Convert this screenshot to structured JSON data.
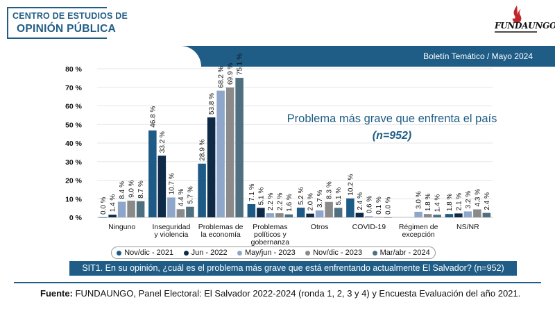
{
  "header": {
    "org_line1": "CENTRO DE ESTUDIOS DE",
    "org_line2": "OPINIÓN PÚBLICA",
    "logo_text": "FUNDAUNGO",
    "band_text": "Boletín Temático / Mayo 2024",
    "colors": {
      "brand": "#1f5d86",
      "logo_red": "#c0272d"
    }
  },
  "chart_title": "Problema más grave que enfrenta el país",
  "chart_n": "(n=952)",
  "chart_data": {
    "type": "bar",
    "ylim": [
      0,
      80
    ],
    "yticks": [
      "0 %",
      "10 %",
      "20 %",
      "30 %",
      "40 %",
      "50 %",
      "60 %",
      "70 %",
      "80 %"
    ],
    "grid": true,
    "legend_position": "bottom",
    "categories": [
      [
        "Ninguno"
      ],
      [
        "Inseguridad",
        "y violencia"
      ],
      [
        "Problemas de",
        "la economía"
      ],
      [
        "Problemas",
        "políticos y",
        "gobernanza"
      ],
      [
        "Otros"
      ],
      [
        "COVID-19"
      ],
      [
        "Régimen de",
        "excepción"
      ],
      [
        "NS/NR"
      ]
    ],
    "series": [
      {
        "name": "Nov/dic - 2021",
        "color": "#1d5a85",
        "values": [
          0.0,
          46.8,
          28.9,
          7.1,
          5.2,
          10.2,
          null,
          1.8
        ],
        "labels": [
          "0.0 %",
          "46.8 %",
          "28.9 %",
          "7.1 %",
          "5.2 %",
          "10.2 %",
          "",
          "1.8 %"
        ]
      },
      {
        "name": "Jun - 2022",
        "color": "#0f2a47",
        "values": [
          1.4,
          33.2,
          53.8,
          5.1,
          2.0,
          2.4,
          null,
          2.1
        ],
        "labels": [
          "1.4 %",
          "33.2 %",
          "53.8 %",
          "5.1 %",
          "2.0 %",
          "2.4 %",
          "",
          "2.1 %"
        ]
      },
      {
        "name": "May/jun - 2023",
        "color": "#8ea6c9",
        "values": [
          8.4,
          10.7,
          68.2,
          2.2,
          3.7,
          0.6,
          3.0,
          3.2
        ],
        "labels": [
          "8.4 %",
          "10.7 %",
          "68.2 %",
          "2.2 %",
          "3.7 %",
          "0.6 %",
          "3.0 %",
          "3.2 %"
        ]
      },
      {
        "name": "Nov/dic - 2023",
        "color": "#8a8a8a",
        "values": [
          9.0,
          4.4,
          69.9,
          2.2,
          8.3,
          0.1,
          1.8,
          4.3
        ],
        "labels": [
          "9.0 %",
          "4.4 %",
          "69.9 %",
          "2.2 %",
          "8.3 %",
          "0.1 %",
          "1.8 %",
          "4.3 %"
        ]
      },
      {
        "name": "Mar/abr - 2024",
        "color": "#4e6f7f",
        "values": [
          8.7,
          5.7,
          75.1,
          1.6,
          5.1,
          0.0,
          1.4,
          2.4
        ],
        "labels": [
          "8.7 %",
          "5.7 %",
          "75.1 %",
          "1.6 %",
          "5.1 %",
          "0.0 %",
          "1.4 %",
          "2.4 %"
        ]
      }
    ]
  },
  "question": "SIT1. En su opinión, ¿cuál es el problema más grave que está enfrentando actualmente El Salvador? (n=952)",
  "source_label": "Fuente:",
  "source_text": " FUNDAUNGO, Panel Electoral: El Salvador 2022-2024 (ronda 1, 2, 3 y 4) y Encuesta Evaluación del año 2021."
}
